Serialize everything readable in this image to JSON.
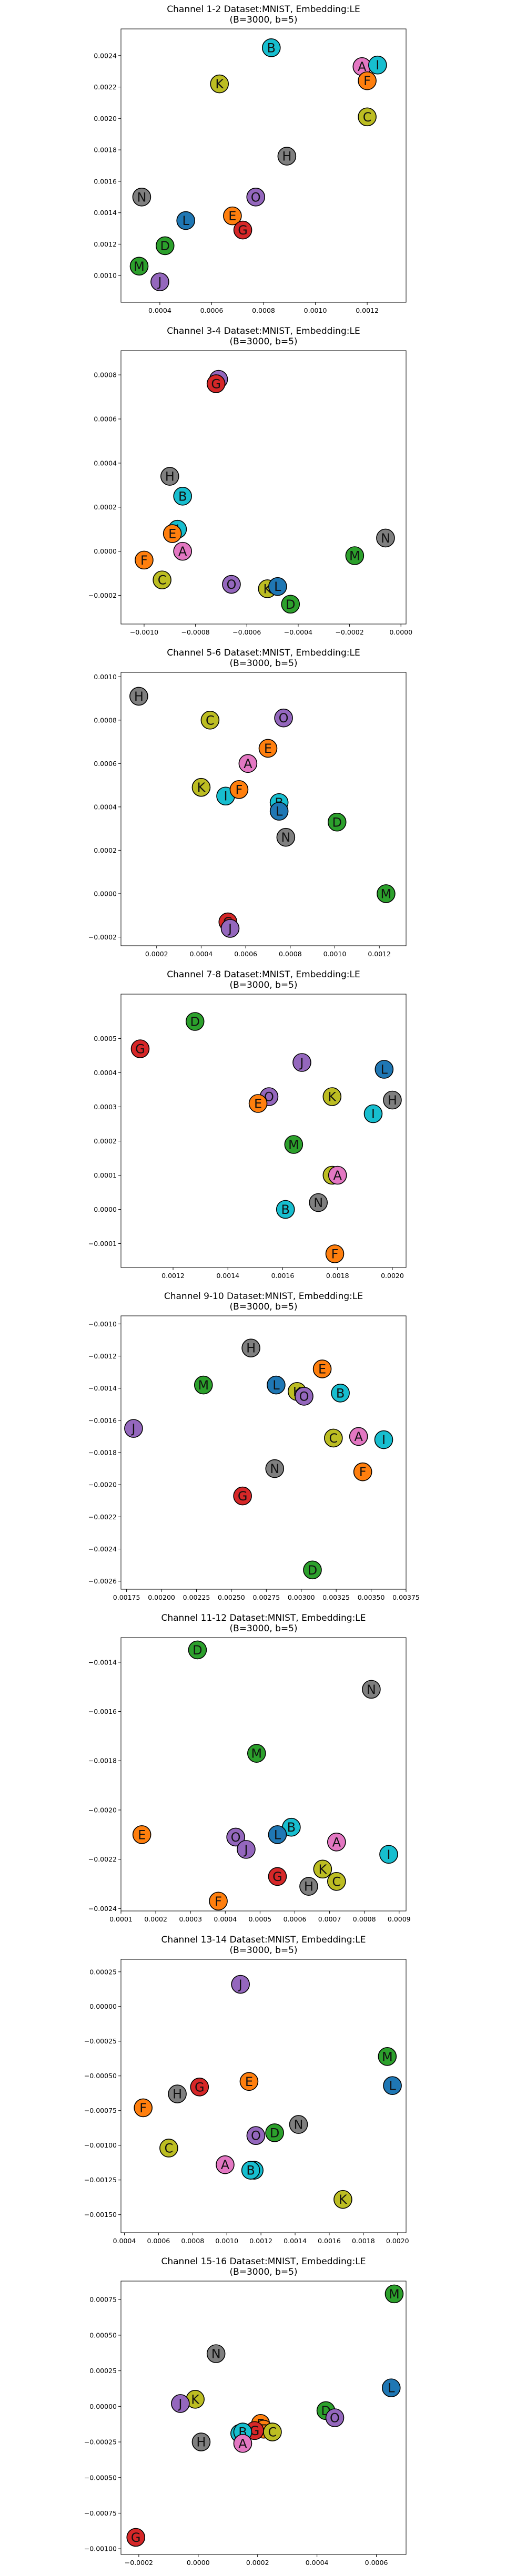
{
  "colors": {
    "A": "#e377c2",
    "B": "#17becf",
    "C": "#bcbd22",
    "D": "#2ca02c",
    "E": "#ff7f0e",
    "F": "#ff7f0e",
    "G": "#d62728",
    "H": "#7f7f7f",
    "I": "#17becf",
    "J": "#9467bd",
    "K": "#bcbd22",
    "L": "#1f77b4",
    "M": "#2ca02c",
    "N": "#7f7f7f",
    "O": "#9467bd"
  },
  "chart_data": [
    {
      "type": "scatter",
      "title": "Channel 1-2 Dataset:MNIST, Embedding:LE",
      "subtitle": "(B=3000, b=5)",
      "xlim": [
        0.00025,
        0.00135
      ],
      "ylim": [
        0.00083,
        0.00257
      ],
      "xticks": [
        0.0004,
        0.0006,
        0.0008,
        0.001,
        0.0012
      ],
      "xtick_labels": [
        "0.0004",
        "0.0006",
        "0.0008",
        "0.0010",
        "0.0012"
      ],
      "yticks": [
        0.001,
        0.0012,
        0.0014,
        0.0016,
        0.0018,
        0.002,
        0.0022,
        0.0024
      ],
      "ytick_labels": [
        "0.0010",
        "0.0012",
        "0.0014",
        "0.0016",
        "0.0018",
        "0.0020",
        "0.0022",
        "0.0024"
      ],
      "points": [
        {
          "label": "B",
          "x": 0.00083,
          "y": 0.00245
        },
        {
          "label": "A",
          "x": 0.00118,
          "y": 0.00233
        },
        {
          "label": "I",
          "x": 0.00124,
          "y": 0.00234
        },
        {
          "label": "K",
          "x": 0.00063,
          "y": 0.00222
        },
        {
          "label": "F",
          "x": 0.0012,
          "y": 0.00224
        },
        {
          "label": "C",
          "x": 0.0012,
          "y": 0.00201
        },
        {
          "label": "H",
          "x": 0.00089,
          "y": 0.00176
        },
        {
          "label": "N",
          "x": 0.00033,
          "y": 0.0015
        },
        {
          "label": "O",
          "x": 0.00077,
          "y": 0.0015
        },
        {
          "label": "L",
          "x": 0.0005,
          "y": 0.00135
        },
        {
          "label": "E",
          "x": 0.00068,
          "y": 0.00138
        },
        {
          "label": "G",
          "x": 0.00072,
          "y": 0.00129
        },
        {
          "label": "D",
          "x": 0.00042,
          "y": 0.00119
        },
        {
          "label": "M",
          "x": 0.00032,
          "y": 0.00106
        },
        {
          "label": "J",
          "x": 0.0004,
          "y": 0.00096
        }
      ]
    },
    {
      "type": "scatter",
      "title": "Channel 3-4 Dataset:MNIST, Embedding:LE",
      "subtitle": "(B=3000, b=5)",
      "xlim": [
        -0.00109,
        2e-05
      ],
      "ylim": [
        -0.00033,
        0.00091
      ],
      "xticks": [
        -0.001,
        -0.0008,
        -0.0006,
        -0.0004,
        -0.0002,
        0
      ],
      "xtick_labels": [
        "−0.0010",
        "−0.0008",
        "−0.0006",
        "−0.0004",
        "−0.0002",
        "0.0000"
      ],
      "yticks": [
        -0.0002,
        0,
        0.0002,
        0.0004,
        0.0006,
        0.0008
      ],
      "ytick_labels": [
        "−0.0002",
        "0.0000",
        "0.0002",
        "0.0004",
        "0.0006",
        "0.0008"
      ],
      "points": [
        {
          "label": "J",
          "x": -0.00071,
          "y": 0.00078
        },
        {
          "label": "G",
          "x": -0.00072,
          "y": 0.00076
        },
        {
          "label": "H",
          "x": -0.0009,
          "y": 0.00034
        },
        {
          "label": "B",
          "x": -0.00085,
          "y": 0.00025
        },
        {
          "label": "I",
          "x": -0.00087,
          "y": 0.0001
        },
        {
          "label": "E",
          "x": -0.00089,
          "y": 8e-05
        },
        {
          "label": "A",
          "x": -0.00085,
          "y": 0
        },
        {
          "label": "F",
          "x": -0.001,
          "y": -4e-05
        },
        {
          "label": "C",
          "x": -0.00093,
          "y": -0.00013
        },
        {
          "label": "O",
          "x": -0.00066,
          "y": -0.00015
        },
        {
          "label": "K",
          "x": -0.00052,
          "y": -0.00017
        },
        {
          "label": "L",
          "x": -0.00048,
          "y": -0.00016
        },
        {
          "label": "D",
          "x": -0.00043,
          "y": -0.00024
        },
        {
          "label": "M",
          "x": -0.00018,
          "y": -2e-05
        },
        {
          "label": "N",
          "x": -6e-05,
          "y": 6e-05
        }
      ]
    },
    {
      "type": "scatter",
      "title": "Channel 5-6 Dataset:MNIST, Embedding:LE",
      "subtitle": "(B=3000, b=5)",
      "xlim": [
        4e-05,
        0.00132
      ],
      "ylim": [
        -0.00024,
        0.00102
      ],
      "xticks": [
        0.0002,
        0.0004,
        0.0006,
        0.0008,
        0.001,
        0.0012
      ],
      "xtick_labels": [
        "0.0002",
        "0.0004",
        "0.0006",
        "0.0008",
        "0.0010",
        "0.0012"
      ],
      "yticks": [
        -0.0002,
        0,
        0.0002,
        0.0004,
        0.0006,
        0.0008,
        0.001
      ],
      "ytick_labels": [
        "−0.0002",
        "0.0000",
        "0.0002",
        "0.0004",
        "0.0006",
        "0.0008",
        "0.0010"
      ],
      "points": [
        {
          "label": "H",
          "x": 0.00012,
          "y": 0.00091
        },
        {
          "label": "C",
          "x": 0.00044,
          "y": 0.0008
        },
        {
          "label": "O",
          "x": 0.00077,
          "y": 0.00081
        },
        {
          "label": "E",
          "x": 0.0007,
          "y": 0.00067
        },
        {
          "label": "A",
          "x": 0.00061,
          "y": 0.0006
        },
        {
          "label": "K",
          "x": 0.0004,
          "y": 0.00049
        },
        {
          "label": "I",
          "x": 0.00051,
          "y": 0.00045
        },
        {
          "label": "F",
          "x": 0.00057,
          "y": 0.00048
        },
        {
          "label": "B",
          "x": 0.00075,
          "y": 0.00042
        },
        {
          "label": "L",
          "x": 0.00075,
          "y": 0.00038
        },
        {
          "label": "N",
          "x": 0.00078,
          "y": 0.00026
        },
        {
          "label": "D",
          "x": 0.00101,
          "y": 0.00033
        },
        {
          "label": "M",
          "x": 0.00123,
          "y": 0
        },
        {
          "label": "G",
          "x": 0.00052,
          "y": -0.00013
        },
        {
          "label": "J",
          "x": 0.00053,
          "y": -0.00016
        }
      ]
    },
    {
      "type": "scatter",
      "title": "Channel 7-8 Dataset:MNIST, Embedding:LE",
      "subtitle": "(B=3000, b=5)",
      "xlim": [
        0.00101,
        0.00205
      ],
      "ylim": [
        -0.00017,
        0.00063
      ],
      "xticks": [
        0.0012,
        0.0014,
        0.0016,
        0.0018,
        0.002
      ],
      "xtick_labels": [
        "0.0012",
        "0.0014",
        "0.0016",
        "0.0018",
        "0.0020"
      ],
      "yticks": [
        -0.0001,
        0,
        0.0001,
        0.0002,
        0.0003,
        0.0004,
        0.0005
      ],
      "ytick_labels": [
        "−0.0001",
        "0.0000",
        "0.0001",
        "0.0002",
        "0.0003",
        "0.0004",
        "0.0005"
      ],
      "points": [
        {
          "label": "D",
          "x": 0.00128,
          "y": 0.00055
        },
        {
          "label": "G",
          "x": 0.00108,
          "y": 0.00047
        },
        {
          "label": "J",
          "x": 0.00167,
          "y": 0.00043
        },
        {
          "label": "L",
          "x": 0.00197,
          "y": 0.00041
        },
        {
          "label": "O",
          "x": 0.00155,
          "y": 0.00033
        },
        {
          "label": "E",
          "x": 0.00151,
          "y": 0.00031
        },
        {
          "label": "K",
          "x": 0.00178,
          "y": 0.00033
        },
        {
          "label": "H",
          "x": 0.002,
          "y": 0.00032
        },
        {
          "label": "I",
          "x": 0.00193,
          "y": 0.00028
        },
        {
          "label": "M",
          "x": 0.00164,
          "y": 0.00019
        },
        {
          "label": "C",
          "x": 0.00178,
          "y": 0.0001
        },
        {
          "label": "A",
          "x": 0.0018,
          "y": 0.0001
        },
        {
          "label": "N",
          "x": 0.00173,
          "y": 2e-05
        },
        {
          "label": "B",
          "x": 0.00161,
          "y": 0
        },
        {
          "label": "F",
          "x": 0.00179,
          "y": -0.00013
        }
      ]
    },
    {
      "type": "scatter",
      "title": "Channel 9-10 Dataset:MNIST, Embedding:LE",
      "subtitle": "(B=3000, b=5)",
      "xlim": [
        0.00171,
        0.00375
      ],
      "ylim": [
        -0.00265,
        -0.00095
      ],
      "xticks": [
        0.00175,
        0.002,
        0.00225,
        0.0025,
        0.00275,
        0.003,
        0.00325,
        0.0035,
        0.00375
      ],
      "xtick_labels": [
        "0.00175",
        "0.00200",
        "0.00225",
        "0.00250",
        "0.00275",
        "0.00300",
        "0.00325",
        "0.00350",
        "0.00375"
      ],
      "yticks": [
        -0.0026,
        -0.0024,
        -0.0022,
        -0.002,
        -0.0018,
        -0.0016,
        -0.0014,
        -0.0012,
        -0.001
      ],
      "ytick_labels": [
        "−0.0026",
        "−0.0024",
        "−0.0022",
        "−0.0020",
        "−0.0018",
        "−0.0016",
        "−0.0014",
        "−0.0012",
        "−0.0010"
      ],
      "points": [
        {
          "label": "H",
          "x": 0.00264,
          "y": -0.00115
        },
        {
          "label": "E",
          "x": 0.00315,
          "y": -0.00128
        },
        {
          "label": "M",
          "x": 0.0023,
          "y": -0.00138
        },
        {
          "label": "L",
          "x": 0.00282,
          "y": -0.00138
        },
        {
          "label": "K",
          "x": 0.00297,
          "y": -0.00142
        },
        {
          "label": "O",
          "x": 0.00302,
          "y": -0.00145
        },
        {
          "label": "B",
          "x": 0.00328,
          "y": -0.00143
        },
        {
          "label": "J",
          "x": 0.0018,
          "y": -0.00165
        },
        {
          "label": "C",
          "x": 0.00323,
          "y": -0.00171
        },
        {
          "label": "A",
          "x": 0.00341,
          "y": -0.0017
        },
        {
          "label": "I",
          "x": 0.00359,
          "y": -0.00172
        },
        {
          "label": "N",
          "x": 0.00281,
          "y": -0.0019
        },
        {
          "label": "F",
          "x": 0.00344,
          "y": -0.00192
        },
        {
          "label": "G",
          "x": 0.00258,
          "y": -0.00207
        },
        {
          "label": "D",
          "x": 0.00308,
          "y": -0.00253
        }
      ]
    },
    {
      "type": "scatter",
      "title": "Channel 11-12 Dataset:MNIST, Embedding:LE",
      "subtitle": "(B=3000, b=5)",
      "xlim": [
        0.0001,
        0.00092
      ],
      "ylim": [
        -0.00241,
        -0.0013
      ],
      "xticks": [
        0.0001,
        0.0002,
        0.0003,
        0.0004,
        0.0005,
        0.0006,
        0.0007,
        0.0008,
        0.0009
      ],
      "xtick_labels": [
        "0.0001",
        "0.0002",
        "0.0003",
        "0.0004",
        "0.0005",
        "0.0006",
        "0.0007",
        "0.0008",
        "0.0009"
      ],
      "yticks": [
        -0.0024,
        -0.0022,
        -0.002,
        -0.0018,
        -0.0016,
        -0.0014
      ],
      "ytick_labels": [
        "−0.0024",
        "−0.0022",
        "−0.0020",
        "−0.0018",
        "−0.0016",
        "−0.0014"
      ],
      "points": [
        {
          "label": "D",
          "x": 0.00032,
          "y": -0.00135
        },
        {
          "label": "N",
          "x": 0.00082,
          "y": -0.00151
        },
        {
          "label": "M",
          "x": 0.00049,
          "y": -0.00177
        },
        {
          "label": "E",
          "x": 0.00016,
          "y": -0.0021
        },
        {
          "label": "B",
          "x": 0.00059,
          "y": -0.00207
        },
        {
          "label": "L",
          "x": 0.00055,
          "y": -0.0021
        },
        {
          "label": "O",
          "x": 0.00043,
          "y": -0.00211
        },
        {
          "label": "A",
          "x": 0.00072,
          "y": -0.00213
        },
        {
          "label": "J",
          "x": 0.00046,
          "y": -0.00216
        },
        {
          "label": "I",
          "x": 0.00087,
          "y": -0.00218
        },
        {
          "label": "K",
          "x": 0.00068,
          "y": -0.00224
        },
        {
          "label": "G",
          "x": 0.00055,
          "y": -0.00227
        },
        {
          "label": "C",
          "x": 0.00072,
          "y": -0.00229
        },
        {
          "label": "H",
          "x": 0.00064,
          "y": -0.00231
        },
        {
          "label": "F",
          "x": 0.00038,
          "y": -0.00237
        }
      ]
    },
    {
      "type": "scatter",
      "title": "Channel 13-14 Dataset:MNIST, Embedding:LE",
      "subtitle": "(B=3000, b=5)",
      "xlim": [
        0.00038,
        0.00205
      ],
      "ylim": [
        -0.00163,
        0.00034
      ],
      "xticks": [
        0.0004,
        0.0006,
        0.0008,
        0.001,
        0.0012,
        0.0014,
        0.0016,
        0.0018,
        0.002
      ],
      "xtick_labels": [
        "0.0004",
        "0.0006",
        "0.0008",
        "0.0010",
        "0.0012",
        "0.0014",
        "0.0016",
        "0.0018",
        "0.0020"
      ],
      "yticks": [
        -0.0015,
        -0.00125,
        -0.001,
        -0.00075,
        -0.0005,
        -0.00025,
        0,
        0.00025
      ],
      "ytick_labels": [
        "−0.00150",
        "−0.00125",
        "−0.00100",
        "−0.00075",
        "−0.00050",
        "−0.00025",
        "0.00000",
        "0.00025"
      ],
      "points": [
        {
          "label": "J",
          "x": 0.00108,
          "y": 0.00016
        },
        {
          "label": "M",
          "x": 0.00194,
          "y": -0.00036
        },
        {
          "label": "E",
          "x": 0.00113,
          "y": -0.00054
        },
        {
          "label": "G",
          "x": 0.00084,
          "y": -0.00058
        },
        {
          "label": "L",
          "x": 0.00197,
          "y": -0.00057
        },
        {
          "label": "H",
          "x": 0.00071,
          "y": -0.00063
        },
        {
          "label": "F",
          "x": 0.00051,
          "y": -0.00073
        },
        {
          "label": "N",
          "x": 0.00142,
          "y": -0.00085
        },
        {
          "label": "D",
          "x": 0.00128,
          "y": -0.00091
        },
        {
          "label": "O",
          "x": 0.00117,
          "y": -0.00093
        },
        {
          "label": "C",
          "x": 0.00066,
          "y": -0.00102
        },
        {
          "label": "A",
          "x": 0.00099,
          "y": -0.00114
        },
        {
          "label": "I",
          "x": 0.00116,
          "y": -0.00118
        },
        {
          "label": "B",
          "x": 0.00114,
          "y": -0.00118
        },
        {
          "label": "K",
          "x": 0.00168,
          "y": -0.00139
        }
      ]
    },
    {
      "type": "scatter",
      "title": "Channel 15-16 Dataset:MNIST, Embedding:LE",
      "subtitle": "(B=3000, b=5)",
      "xlim": [
        -0.00026,
        0.0007
      ],
      "ylim": [
        -0.00104,
        0.00088
      ],
      "xticks": [
        -0.0002,
        0,
        0.0002,
        0.0004,
        0.0006
      ],
      "xtick_labels": [
        "−0.0002",
        "0.0000",
        "0.0002",
        "0.0004",
        "0.0006"
      ],
      "yticks": [
        -0.001,
        -0.00075,
        -0.0005,
        -0.00025,
        0,
        0.00025,
        0.0005,
        0.00075
      ],
      "ytick_labels": [
        "−0.00100",
        "−0.00075",
        "−0.00050",
        "−0.00025",
        "0.00000",
        "0.00025",
        "0.00050",
        "0.00075"
      ],
      "points": [
        {
          "label": "M",
          "x": 0.00066,
          "y": 0.00079
        },
        {
          "label": "N",
          "x": 6e-05,
          "y": 0.00037
        },
        {
          "label": "L",
          "x": 0.00065,
          "y": 0.00013
        },
        {
          "label": "K",
          "x": -1e-05,
          "y": 5e-05
        },
        {
          "label": "J",
          "x": -6e-05,
          "y": 2e-05
        },
        {
          "label": "D",
          "x": 0.00043,
          "y": -3e-05
        },
        {
          "label": "O",
          "x": 0.00046,
          "y": -8e-05
        },
        {
          "label": "E",
          "x": 0.00021,
          "y": -0.00012
        },
        {
          "label": "F",
          "x": 0.00022,
          "y": -0.00016
        },
        {
          "label": "C",
          "x": 0.00025,
          "y": -0.00018
        },
        {
          "label": "I",
          "x": 0.00014,
          "y": -0.00019
        },
        {
          "label": "G",
          "x": 0.00019,
          "y": -0.00017
        },
        {
          "label": "B",
          "x": 0.00015,
          "y": -0.00018
        },
        {
          "label": "H",
          "x": 1e-05,
          "y": -0.00025
        },
        {
          "label": "A",
          "x": 0.00015,
          "y": -0.00026
        },
        {
          "label": "G",
          "x": -0.00021,
          "y": -0.00092
        }
      ]
    }
  ]
}
